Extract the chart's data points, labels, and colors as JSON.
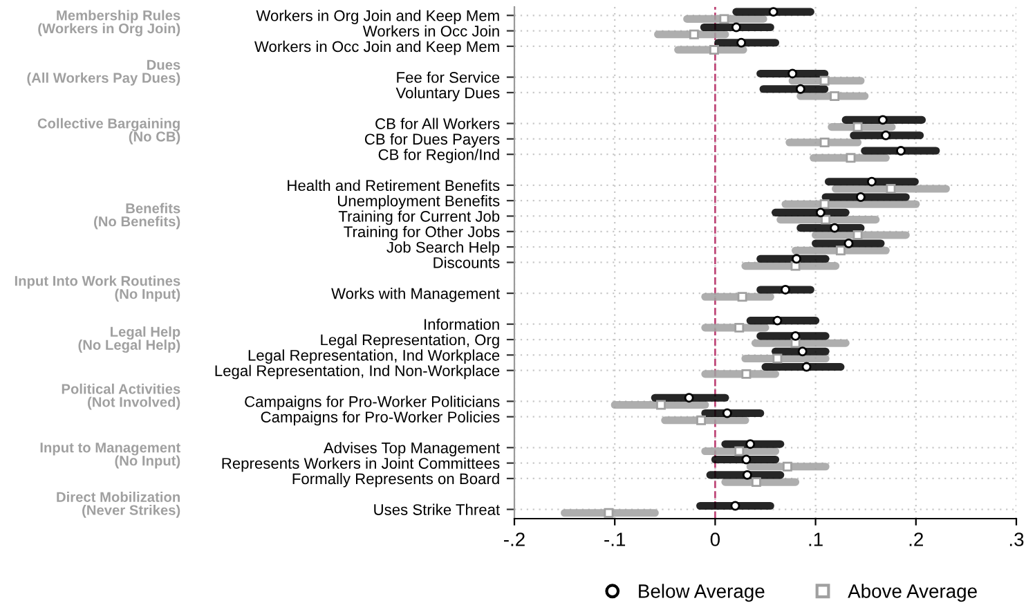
{
  "chart_data": {
    "type": "scatter",
    "orientation": "horizontal",
    "categories": [
      "Workers in Org Join and Keep Mem",
      "Workers in Occ Join",
      "Workers in Occ Join and Keep Mem",
      null,
      "Fee for Service",
      "Voluntary Dues",
      null,
      "CB for All Workers",
      "CB for Dues Payers",
      "CB for Region/Ind",
      null,
      "Health and Retirement Benefits",
      "Unemployment Benefits",
      "Training for Current Job",
      "Training for Other Jobs",
      "Job Search Help",
      "Discounts",
      null,
      "Works with Management",
      null,
      "Information",
      "Legal Representation, Org",
      "Legal Representation, Ind Workplace",
      "Legal Representation, Ind Non-Workplace",
      null,
      "Campaigns for Pro-Worker Politicians",
      "Campaigns for Pro-Worker Policies",
      null,
      "Advises Top Management",
      "Represents Workers in Joint Committees",
      "Formally Represents on Board",
      null,
      "Uses Strike Threat"
    ],
    "series": [
      {
        "name": "Below Average",
        "color": "#000000",
        "marker": "circle",
        "values": [
          0.058,
          0.021,
          0.026,
          null,
          0.077,
          0.085,
          null,
          0.167,
          0.17,
          0.185,
          null,
          0.156,
          0.145,
          0.105,
          0.119,
          0.133,
          0.081,
          null,
          0.07,
          null,
          0.062,
          0.08,
          0.087,
          0.091,
          null,
          -0.026,
          0.012,
          null,
          0.035,
          0.031,
          0.032,
          null,
          0.02
        ],
        "errors": [
          [
            0.021,
            0.095
          ],
          [
            -0.011,
            0.055
          ],
          [
            0.003,
            0.06
          ],
          null,
          [
            0.045,
            0.109
          ],
          [
            0.048,
            0.109
          ],
          null,
          [
            0.13,
            0.206
          ],
          [
            0.138,
            0.204
          ],
          [
            0.149,
            0.22
          ],
          null,
          [
            0.113,
            0.199
          ],
          [
            0.11,
            0.19
          ],
          [
            0.06,
            0.13
          ],
          [
            0.085,
            0.145
          ],
          [
            0.1,
            0.165
          ],
          [
            0.045,
            0.11
          ],
          null,
          [
            0.045,
            0.095
          ],
          null,
          [
            0.035,
            0.1
          ],
          [
            0.045,
            0.11
          ],
          [
            0.06,
            0.11
          ],
          [
            0.05,
            0.125
          ],
          null,
          [
            -0.06,
            0.01
          ],
          [
            -0.01,
            0.045
          ],
          null,
          [
            0.01,
            0.065
          ],
          [
            0.0,
            0.06
          ],
          [
            -0.005,
            0.065
          ],
          null,
          [
            -0.015,
            0.055
          ]
        ]
      },
      {
        "name": "Above Average",
        "color": "#a0a0a0",
        "marker": "square",
        "values": [
          0.009,
          -0.021,
          -0.001,
          null,
          0.109,
          0.119,
          null,
          0.142,
          0.109,
          0.135,
          null,
          0.175,
          0.109,
          0.11,
          0.142,
          0.125,
          0.08,
          null,
          0.027,
          null,
          0.024,
          0.08,
          0.062,
          0.031,
          null,
          -0.054,
          -0.014,
          null,
          0.024,
          0.072,
          0.041,
          null,
          -0.106
        ],
        "errors": [
          [
            -0.028,
            0.048
          ],
          [
            -0.057,
            0.01
          ],
          [
            -0.037,
            0.028
          ],
          null,
          [
            0.077,
            0.145
          ],
          [
            0.085,
            0.149
          ],
          null,
          [
            0.116,
            0.176
          ],
          [
            0.074,
            0.142
          ],
          [
            0.098,
            0.17
          ],
          null,
          [
            0.12,
            0.23
          ],
          [
            0.07,
            0.2
          ],
          [
            0.065,
            0.16
          ],
          [
            0.1,
            0.19
          ],
          [
            0.08,
            0.17
          ],
          [
            0.03,
            0.12
          ],
          null,
          [
            -0.01,
            0.055
          ],
          null,
          [
            -0.01,
            0.05
          ],
          [
            0.04,
            0.13
          ],
          [
            0.03,
            0.11
          ],
          [
            -0.01,
            0.06
          ],
          null,
          [
            -0.1,
            -0.01
          ],
          [
            -0.05,
            0.03
          ],
          null,
          [
            -0.01,
            0.06
          ],
          [
            0.035,
            0.11
          ],
          [
            0.01,
            0.08
          ],
          null,
          [
            -0.15,
            -0.06
          ]
        ]
      }
    ],
    "xlim": [
      -0.2,
      0.3
    ],
    "xticks": [
      {
        "value": -0.2,
        "label": "-.2"
      },
      {
        "value": -0.1,
        "label": "-.1"
      },
      0,
      {
        "value": 0.1,
        "label": ".1"
      },
      {
        "value": 0.2,
        "label": ".2"
      },
      {
        "value": 0.3,
        "label": ".3"
      }
    ],
    "ref_lines": [
      {
        "axis": "x",
        "value": 0,
        "color": "#c04a7a",
        "line_style": "dashed"
      }
    ],
    "annotations": [
      "Membership Rules\n(Workers in Org Join)",
      "Dues\n(All Workers Pay Dues)",
      "Collective Bargaining\n(No CB)",
      "Benefits\n(No Benefits)",
      "Input Into Work Routines\n(No Input)",
      "Legal Help\n(No Legal Help)",
      "Political Activities\n(Not Involved)",
      "Input to Management\n(No Input)",
      "Direct Mobilization\n(Never Strikes)"
    ],
    "grid": true,
    "legend": "bottom"
  }
}
